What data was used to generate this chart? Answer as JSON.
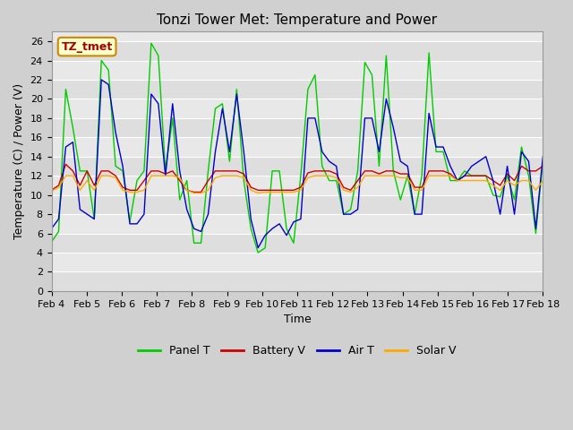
{
  "title": "Tonzi Tower Met: Temperature and Power",
  "xlabel": "Time",
  "ylabel": "Temperature (C) / Power (V)",
  "ylim": [
    0,
    27
  ],
  "yticks": [
    0,
    2,
    4,
    6,
    8,
    10,
    12,
    14,
    16,
    18,
    20,
    22,
    24,
    26
  ],
  "xtick_labels": [
    "Feb 4",
    "Feb 5",
    "Feb 6",
    "Feb 7",
    "Feb 8",
    "Feb 9",
    "Feb 10",
    "Feb 11",
    "Feb 12",
    "Feb 13",
    "Feb 14",
    "Feb 15",
    "Feb 16",
    "Feb 17",
    "Feb 18"
  ],
  "annotation_text": "TZ_tmet",
  "annotation_color": "#aa0000",
  "annotation_bg": "#ffffcc",
  "annotation_border": "#cc8800",
  "legend_labels": [
    "Panel T",
    "Battery V",
    "Air T",
    "Solar V"
  ],
  "legend_colors": [
    "#00cc00",
    "#cc0000",
    "#0000cc",
    "#ffaa00"
  ],
  "figsize": [
    6.4,
    4.8
  ],
  "dpi": 100,
  "title_fontsize": 11,
  "label_fontsize": 9,
  "tick_fontsize": 8,
  "panel_t": [
    5.1,
    6.2,
    21.0,
    17.0,
    12.5,
    12.5,
    7.5,
    24.0,
    23.0,
    13.0,
    12.5,
    7.2,
    11.5,
    12.5,
    25.8,
    24.5,
    12.5,
    18.0,
    9.5,
    11.5,
    5.0,
    5.0,
    12.5,
    19.0,
    19.5,
    13.5,
    21.0,
    11.5,
    6.5,
    4.0,
    4.5,
    12.5,
    12.5,
    6.5,
    5.0,
    12.0,
    21.0,
    22.5,
    13.0,
    11.5,
    11.5,
    8.0,
    8.5,
    12.5,
    23.8,
    22.5,
    13.0,
    24.5,
    12.5,
    9.5,
    12.0,
    8.0,
    12.0,
    24.8,
    14.5,
    14.5,
    11.5,
    11.5,
    12.5,
    12.0,
    12.0,
    12.0,
    10.0,
    9.8,
    12.0,
    9.5,
    15.0,
    12.0,
    6.0,
    13.5
  ],
  "battery_v": [
    10.5,
    11.0,
    13.2,
    12.5,
    11.0,
    12.5,
    11.0,
    12.5,
    12.5,
    12.0,
    10.8,
    10.5,
    10.5,
    11.5,
    12.5,
    12.5,
    12.2,
    12.5,
    11.5,
    10.5,
    10.3,
    10.3,
    11.5,
    12.5,
    12.5,
    12.5,
    12.5,
    12.2,
    10.8,
    10.5,
    10.5,
    10.5,
    10.5,
    10.5,
    10.5,
    10.8,
    12.3,
    12.5,
    12.5,
    12.5,
    12.2,
    10.8,
    10.5,
    11.5,
    12.5,
    12.5,
    12.2,
    12.5,
    12.5,
    12.2,
    12.2,
    10.8,
    10.8,
    12.5,
    12.5,
    12.5,
    12.2,
    11.5,
    12.0,
    12.0,
    12.0,
    12.0,
    11.5,
    11.0,
    12.2,
    11.5,
    13.0,
    12.5,
    12.5,
    13.0
  ],
  "air_t": [
    6.5,
    7.5,
    15.0,
    15.5,
    8.5,
    8.0,
    7.5,
    22.0,
    21.5,
    16.5,
    13.0,
    7.0,
    7.0,
    8.0,
    20.5,
    19.5,
    12.0,
    19.5,
    12.5,
    8.5,
    6.5,
    6.2,
    8.0,
    14.5,
    19.0,
    14.5,
    20.5,
    14.5,
    7.5,
    4.5,
    5.8,
    6.5,
    7.0,
    5.8,
    7.2,
    7.5,
    18.0,
    18.0,
    14.5,
    13.5,
    13.0,
    8.0,
    8.0,
    8.5,
    18.0,
    18.0,
    14.5,
    20.0,
    17.0,
    13.5,
    13.0,
    8.0,
    8.0,
    18.5,
    15.0,
    15.0,
    13.0,
    11.5,
    12.0,
    13.0,
    13.5,
    14.0,
    11.5,
    8.0,
    13.0,
    8.0,
    14.5,
    13.5,
    6.5,
    14.0
  ],
  "solar_v": [
    10.4,
    10.8,
    12.0,
    12.0,
    10.5,
    11.5,
    10.5,
    12.0,
    12.0,
    11.8,
    10.5,
    10.3,
    10.3,
    10.5,
    12.0,
    12.0,
    12.0,
    12.0,
    11.8,
    10.5,
    10.2,
    10.2,
    10.5,
    11.8,
    12.0,
    12.0,
    12.0,
    11.8,
    10.5,
    10.2,
    10.3,
    10.3,
    10.3,
    10.3,
    10.3,
    10.5,
    11.8,
    12.0,
    12.0,
    12.0,
    11.8,
    10.5,
    10.3,
    10.8,
    12.0,
    12.0,
    12.0,
    12.0,
    12.0,
    11.8,
    11.8,
    10.5,
    10.5,
    12.0,
    12.0,
    12.0,
    12.0,
    11.5,
    11.5,
    11.5,
    11.5,
    11.5,
    11.0,
    10.5,
    11.5,
    11.0,
    11.5,
    11.5,
    10.5,
    11.5
  ]
}
